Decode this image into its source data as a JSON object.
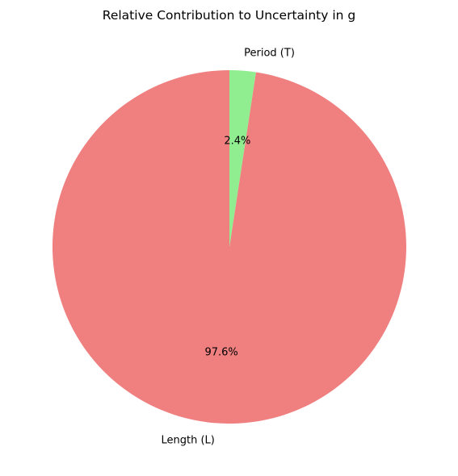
{
  "chart_data": {
    "type": "pie",
    "title": "Relative Contribution to Uncertainty in g",
    "start_angle_deg": 90,
    "direction": "counterclockwise",
    "slices": [
      {
        "label": "Length (L)",
        "value": 97.6,
        "pct_label": "97.6%",
        "color": "#f08080"
      },
      {
        "label": "Period (T)",
        "value": 2.4,
        "pct_label": "2.4%",
        "color": "#90ee90"
      }
    ]
  }
}
